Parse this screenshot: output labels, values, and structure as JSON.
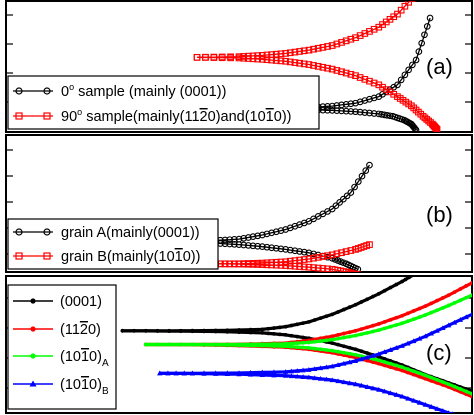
{
  "chart_data": [
    {
      "type": "line",
      "panel_label": "(a)",
      "grid": false,
      "legend_position": "bottom-left",
      "series": [
        {
          "name": "0° sample (mainly (0001))",
          "color": "#000000",
          "marker": "open-circle",
          "branches": [
            [
              [
                0.305,
                0.18
              ],
              [
                0.35,
                0.18
              ],
              [
                0.4,
                0.18
              ],
              [
                0.45,
                0.18
              ],
              [
                0.5,
                0.18
              ],
              [
                0.55,
                0.181
              ],
              [
                0.6,
                0.183
              ],
              [
                0.65,
                0.188
              ],
              [
                0.7,
                0.198
              ],
              [
                0.75,
                0.22
              ],
              [
                0.8,
                0.27
              ],
              [
                0.84,
                0.36
              ],
              [
                0.88,
                0.55
              ],
              [
                0.91,
                0.87
              ]
            ],
            [
              [
                0.305,
                0.18
              ],
              [
                0.4,
                0.178
              ],
              [
                0.5,
                0.176
              ],
              [
                0.6,
                0.172
              ],
              [
                0.65,
                0.17
              ],
              [
                0.7,
                0.165
              ],
              [
                0.75,
                0.155
              ],
              [
                0.8,
                0.138
              ],
              [
                0.83,
                0.12
              ],
              [
                0.855,
                0.09
              ],
              [
                0.87,
                0.06
              ],
              [
                0.88,
                0.015
              ]
            ]
          ]
        },
        {
          "name": "90° sample(mainly(11-20)and(10-10))",
          "legend_label_prefix": "90",
          "legend_label_mid1": "sample(mainly(11",
          "legend_label_bar1": "2",
          "legend_label_mid2": "0)and(10",
          "legend_label_bar2": "1",
          "legend_label_end": "0))",
          "color": "#ff0000",
          "marker": "open-square",
          "branches": [
            [
              [
                0.41,
                0.57
              ],
              [
                0.5,
                0.575
              ],
              [
                0.55,
                0.585
              ],
              [
                0.6,
                0.6
              ],
              [
                0.65,
                0.625
              ],
              [
                0.7,
                0.66
              ],
              [
                0.75,
                0.72
              ],
              [
                0.8,
                0.8
              ],
              [
                0.84,
                0.9
              ],
              [
                0.88,
                1.05
              ],
              [
                0.905,
                1.2
              ]
            ],
            [
              [
                0.41,
                0.57
              ],
              [
                0.5,
                0.565
              ],
              [
                0.55,
                0.555
              ],
              [
                0.6,
                0.54
              ],
              [
                0.65,
                0.515
              ],
              [
                0.7,
                0.48
              ],
              [
                0.75,
                0.43
              ],
              [
                0.8,
                0.36
              ],
              [
                0.84,
                0.27
              ],
              [
                0.87,
                0.2
              ],
              [
                0.895,
                0.12
              ],
              [
                0.915,
                0.06
              ],
              [
                0.925,
                0.02
              ]
            ]
          ]
        }
      ]
    },
    {
      "type": "line",
      "panel_label": "(b)",
      "grid": false,
      "legend_position": "bottom-left",
      "series": [
        {
          "name": "grain A(mainly(0001))",
          "color": "#000000",
          "marker": "open-circle",
          "branches": [
            [
              [
                0.15,
                0.22
              ],
              [
                0.25,
                0.22
              ],
              [
                0.35,
                0.22
              ],
              [
                0.4,
                0.224
              ],
              [
                0.45,
                0.23
              ],
              [
                0.5,
                0.24
              ],
              [
                0.55,
                0.27
              ],
              [
                0.6,
                0.31
              ],
              [
                0.65,
                0.37
              ],
              [
                0.7,
                0.46
              ],
              [
                0.74,
                0.58
              ],
              [
                0.78,
                0.78
              ]
            ],
            [
              [
                0.15,
                0.22
              ],
              [
                0.3,
                0.218
              ],
              [
                0.4,
                0.215
              ],
              [
                0.45,
                0.21
              ],
              [
                0.5,
                0.2
              ],
              [
                0.55,
                0.185
              ],
              [
                0.6,
                0.165
              ],
              [
                0.65,
                0.14
              ],
              [
                0.7,
                0.1
              ],
              [
                0.73,
                0.06
              ],
              [
                0.755,
                0.02
              ]
            ]
          ]
        },
        {
          "name": "grain B(mainly(10-10))",
          "legend_label_prefix": "grain B(mainly(10",
          "legend_label_bar": "1",
          "legend_label_end": "0))",
          "color": "#ff0000",
          "marker": "open-square",
          "branches": [
            [
              [
                0.45,
                0.06
              ],
              [
                0.5,
                0.06
              ],
              [
                0.55,
                0.065
              ],
              [
                0.6,
                0.075
              ],
              [
                0.65,
                0.095
              ],
              [
                0.7,
                0.125
              ],
              [
                0.75,
                0.165
              ],
              [
                0.78,
                0.2
              ]
            ],
            [
              [
                0.45,
                0.06
              ],
              [
                0.5,
                0.058
              ],
              [
                0.55,
                0.054
              ],
              [
                0.6,
                0.047
              ],
              [
                0.65,
                0.035
              ],
              [
                0.7,
                0.02
              ],
              [
                0.73,
                0.0
              ],
              [
                0.755,
                -0.02
              ],
              [
                0.775,
                -0.045
              ]
            ]
          ]
        }
      ]
    },
    {
      "type": "line",
      "panel_label": "(c)",
      "grid": false,
      "legend_position": "left",
      "series": [
        {
          "name": "(0001)",
          "legend_label": "(0001)",
          "color": "#000000",
          "marker": "dot",
          "branches": [
            [
              [
                0.25,
                0.6
              ],
              [
                0.35,
                0.6
              ],
              [
                0.45,
                0.602
              ],
              [
                0.55,
                0.61
              ],
              [
                0.6,
                0.63
              ],
              [
                0.65,
                0.665
              ],
              [
                0.7,
                0.72
              ],
              [
                0.75,
                0.79
              ],
              [
                0.8,
                0.87
              ],
              [
                0.85,
                0.96
              ],
              [
                0.88,
                1.02
              ]
            ],
            [
              [
                0.25,
                0.6
              ],
              [
                0.35,
                0.598
              ],
              [
                0.45,
                0.595
              ],
              [
                0.55,
                0.585
              ],
              [
                0.6,
                0.57
              ],
              [
                0.65,
                0.545
              ],
              [
                0.7,
                0.51
              ],
              [
                0.75,
                0.465
              ],
              [
                0.8,
                0.41
              ],
              [
                0.85,
                0.35
              ],
              [
                0.9,
                0.28
              ],
              [
                0.95,
                0.22
              ],
              [
                1.0,
                0.16
              ]
            ]
          ]
        },
        {
          "name": "(11-20)",
          "legend_label_prefix": "(11",
          "legend_label_bar": "2",
          "legend_label_end": "0)",
          "color": "#ff0000",
          "marker": "dot",
          "branches": [
            [
              [
                0.3,
                0.5
              ],
              [
                0.4,
                0.5
              ],
              [
                0.5,
                0.502
              ],
              [
                0.6,
                0.51
              ],
              [
                0.65,
                0.53
              ],
              [
                0.7,
                0.56
              ],
              [
                0.75,
                0.6
              ],
              [
                0.8,
                0.65
              ],
              [
                0.85,
                0.71
              ],
              [
                0.9,
                0.78
              ],
              [
                0.95,
                0.86
              ],
              [
                1.0,
                0.95
              ]
            ],
            [
              [
                0.3,
                0.5
              ],
              [
                0.4,
                0.498
              ],
              [
                0.5,
                0.492
              ],
              [
                0.6,
                0.48
              ],
              [
                0.65,
                0.465
              ],
              [
                0.7,
                0.44
              ],
              [
                0.75,
                0.405
              ],
              [
                0.8,
                0.36
              ],
              [
                0.85,
                0.31
              ],
              [
                0.9,
                0.25
              ],
              [
                0.95,
                0.19
              ],
              [
                1.0,
                0.12
              ]
            ]
          ]
        },
        {
          "name": "(10-10)_A",
          "legend_label_prefix": "(10",
          "legend_label_bar": "1",
          "legend_label_end": "0)",
          "legend_label_sub": "A",
          "color": "#00ff00",
          "marker": "dot",
          "branches": [
            [
              [
                0.3,
                0.5
              ],
              [
                0.4,
                0.5
              ],
              [
                0.5,
                0.5
              ],
              [
                0.6,
                0.505
              ],
              [
                0.65,
                0.515
              ],
              [
                0.7,
                0.535
              ],
              [
                0.75,
                0.565
              ],
              [
                0.8,
                0.605
              ],
              [
                0.85,
                0.655
              ],
              [
                0.9,
                0.715
              ],
              [
                0.95,
                0.785
              ],
              [
                1.0,
                0.86
              ]
            ],
            [
              [
                0.3,
                0.5
              ],
              [
                0.4,
                0.5
              ],
              [
                0.5,
                0.495
              ],
              [
                0.6,
                0.487
              ],
              [
                0.65,
                0.475
              ],
              [
                0.7,
                0.455
              ],
              [
                0.75,
                0.425
              ],
              [
                0.8,
                0.385
              ],
              [
                0.85,
                0.335
              ],
              [
                0.9,
                0.275
              ],
              [
                0.95,
                0.21
              ],
              [
                1.0,
                0.14
              ]
            ]
          ]
        },
        {
          "name": "(10-10)_B",
          "legend_label_prefix": "(10",
          "legend_label_bar": "1",
          "legend_label_end": "0)",
          "legend_label_sub": "B",
          "color": "#0000ff",
          "marker": "triangle",
          "branches": [
            [
              [
                0.33,
                0.29
              ],
              [
                0.4,
                0.29
              ],
              [
                0.5,
                0.292
              ],
              [
                0.6,
                0.3
              ],
              [
                0.65,
                0.315
              ],
              [
                0.7,
                0.34
              ],
              [
                0.75,
                0.38
              ],
              [
                0.8,
                0.43
              ],
              [
                0.85,
                0.49
              ],
              [
                0.9,
                0.56
              ],
              [
                0.95,
                0.64
              ],
              [
                1.0,
                0.72
              ]
            ],
            [
              [
                0.33,
                0.29
              ],
              [
                0.4,
                0.288
              ],
              [
                0.5,
                0.283
              ],
              [
                0.6,
                0.272
              ],
              [
                0.65,
                0.26
              ],
              [
                0.7,
                0.24
              ],
              [
                0.75,
                0.21
              ],
              [
                0.8,
                0.17
              ],
              [
                0.85,
                0.12
              ],
              [
                0.9,
                0.06
              ],
              [
                0.95,
                0.0
              ],
              [
                0.98,
                -0.03
              ]
            ]
          ]
        }
      ]
    }
  ]
}
